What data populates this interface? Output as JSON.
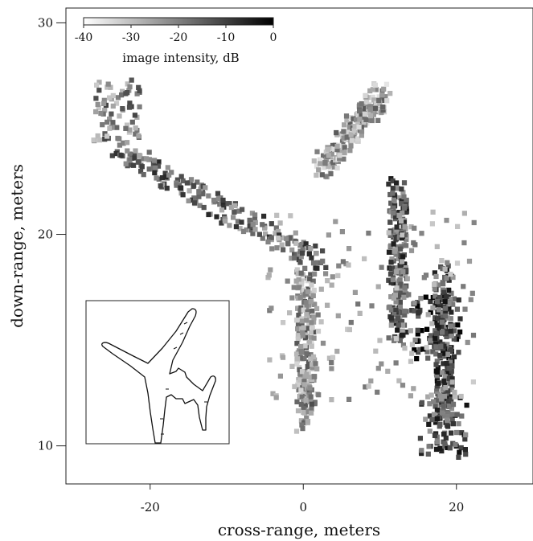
{
  "chart_data": {
    "type": "heatmap",
    "title": "",
    "xlabel": "cross-range, meters",
    "ylabel": "down-range, meters",
    "xlim": [
      -31,
      30
    ],
    "ylim": [
      8.2,
      30.7
    ],
    "x_ticks": [
      {
        "value": -20,
        "label": "-20"
      },
      {
        "value": 0,
        "label": "0"
      },
      {
        "value": 20,
        "label": "20"
      }
    ],
    "y_ticks": [
      {
        "value": 10,
        "label": "10"
      },
      {
        "value": 20,
        "label": "20"
      },
      {
        "value": 30,
        "label": "30"
      }
    ],
    "colorbar": {
      "label": "image intensity, dB",
      "range": [
        -40,
        0
      ],
      "ticks": [
        {
          "value": -40,
          "label": "-40"
        },
        {
          "value": -30,
          "label": "-30"
        },
        {
          "value": -20,
          "label": "-20"
        },
        {
          "value": -10,
          "label": "-10"
        },
        {
          "value": 0,
          "label": "0"
        }
      ],
      "colormap": "grayscale, white at -40 dB to black at 0 dB"
    },
    "grid": false,
    "inset": "aircraft outline silhouette (lower-left)",
    "scatter_features": [
      {
        "name": "wing streak",
        "from": [
          -25,
          24
        ],
        "to": [
          2,
          18.5
        ],
        "intensity_db": -18
      },
      {
        "name": "nose tip",
        "at": [
          -24.5,
          25.8
        ],
        "intensity_db": -22
      },
      {
        "name": "vertical streak center",
        "from": [
          0,
          18
        ],
        "to": [
          0,
          11
        ],
        "intensity_db": -24
      },
      {
        "name": "right tail cluster",
        "at": [
          17,
          15.5
        ],
        "intensity_db": -8
      },
      {
        "name": "upper right streak",
        "from": [
          2,
          23
        ],
        "to": [
          10,
          26.5
        ],
        "intensity_db": -26
      },
      {
        "name": "right vertical streak",
        "from": [
          12,
          22
        ],
        "to": [
          12,
          15
        ],
        "intensity_db": -16
      },
      {
        "name": "right lower streak",
        "from": [
          18,
          18
        ],
        "to": [
          18,
          11
        ],
        "intensity_db": -14
      },
      {
        "name": "lower right bright",
        "at": [
          18,
          10.8
        ],
        "intensity_db": -14
      }
    ]
  },
  "colors": {
    "axis": "#222222",
    "background": "#ffffff",
    "max_intensity": "#000000",
    "min_intensity": "#ffffff"
  }
}
